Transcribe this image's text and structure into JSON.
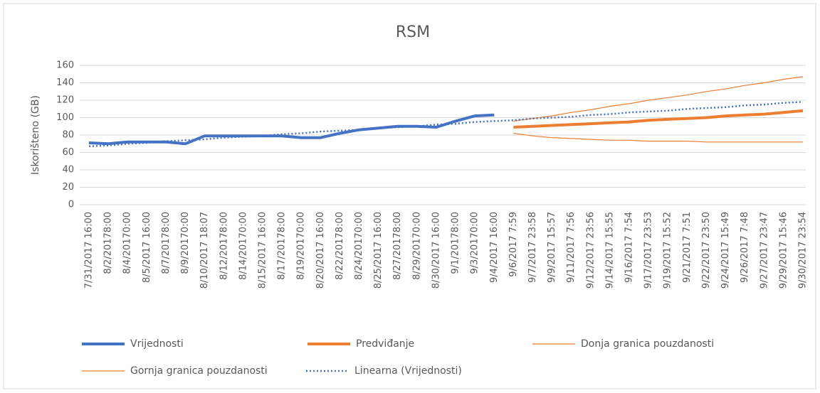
{
  "chart_data": {
    "type": "line",
    "title": "RSM",
    "y_label": "Iskorišteno (GB)",
    "categories": [
      "7/31/2017 16:00",
      "8/2/20178:00",
      "8/4/20170:00",
      "8/5/2017 16:00",
      "8/7/20178:00",
      "8/9/20170:00",
      "8/10/2017 18:07",
      "8/12/20178:00",
      "8/14/20170:00",
      "8/15/2017 16:00",
      "8/17/20178:00",
      "8/19/20170:00",
      "8/20/2017 16:00",
      "8/22/20178:00",
      "8/24/20170:00",
      "8/25/2017 16:00",
      "8/27/20178:00",
      "8/29/20170:00",
      "8/30/2017 16:00",
      "9/1/20178:00",
      "9/3/20170:00",
      "9/4/2017 16:00",
      "9/6/2017 7:59",
      "9/7/2017 23:58",
      "9/9/2017 15:57",
      "9/11/2017 7:56",
      "9/12/2017 23:56",
      "9/14/2017 15:55",
      "9/16/2017 7:54",
      "9/17/2017 23:53",
      "9/19/2017 15:52",
      "9/21/2017 7:51",
      "9/22/2017 23:50",
      "9/24/2017 15:49",
      "9/26/2017 7:48",
      "9/27/2017 23:47",
      "9/29/2017 15:46",
      "9/30/2017 23:54"
    ],
    "series": [
      {
        "name": "Vrijednosti",
        "color": "#4472c4",
        "width": 4,
        "values": [
          71,
          70,
          72,
          72,
          72,
          70,
          79,
          79,
          79,
          79,
          79,
          77,
          77,
          82,
          86,
          88,
          90,
          90,
          89,
          96,
          102,
          103,
          null,
          null,
          null,
          null,
          null,
          null,
          null,
          null,
          null,
          null,
          null,
          null,
          null,
          null,
          null,
          null
        ]
      },
      {
        "name": "Predviđanje",
        "color": "#ed7d31",
        "width": 4,
        "values": [
          null,
          null,
          null,
          null,
          null,
          null,
          null,
          null,
          null,
          null,
          null,
          null,
          null,
          null,
          null,
          null,
          null,
          null,
          null,
          null,
          null,
          null,
          89,
          90,
          91,
          92,
          93,
          94,
          95,
          97,
          98,
          99,
          100,
          102,
          103,
          104,
          106,
          108
        ]
      },
      {
        "name": "Donja granica pouzdanosti",
        "color": "#ed7d31",
        "width": 1.2,
        "values": [
          null,
          null,
          null,
          null,
          null,
          null,
          null,
          null,
          null,
          null,
          null,
          null,
          null,
          null,
          null,
          null,
          null,
          null,
          null,
          null,
          null,
          null,
          82,
          79,
          77,
          76,
          75,
          74,
          74,
          73,
          73,
          73,
          72,
          72,
          72,
          72,
          72,
          72
        ]
      },
      {
        "name": "Gornja granica pouzdanosti",
        "color": "#ed7d31",
        "width": 1.2,
        "values": [
          null,
          null,
          null,
          null,
          null,
          null,
          null,
          null,
          null,
          null,
          null,
          null,
          null,
          null,
          null,
          null,
          null,
          null,
          null,
          null,
          null,
          null,
          96,
          99,
          102,
          106,
          109,
          113,
          116,
          120,
          123,
          126,
          130,
          133,
          137,
          140,
          144,
          147
        ]
      },
      {
        "name": "Linearna (Vrijednosti)",
        "color": "#4472c4",
        "width": 2.5,
        "dotted": true,
        "values": [
          67,
          68,
          70,
          71,
          73,
          74,
          75,
          77,
          78,
          79,
          81,
          82,
          84,
          85,
          86,
          88,
          89,
          90,
          92,
          93,
          95,
          96,
          97,
          99,
          100,
          101,
          103,
          104,
          106,
          107,
          108,
          110,
          111,
          112,
          114,
          115,
          117,
          118
        ]
      }
    ],
    "ylim": [
      0,
      160
    ],
    "yticks": [
      0,
      20,
      40,
      60,
      80,
      100,
      120,
      140,
      160
    ],
    "grid": true
  }
}
